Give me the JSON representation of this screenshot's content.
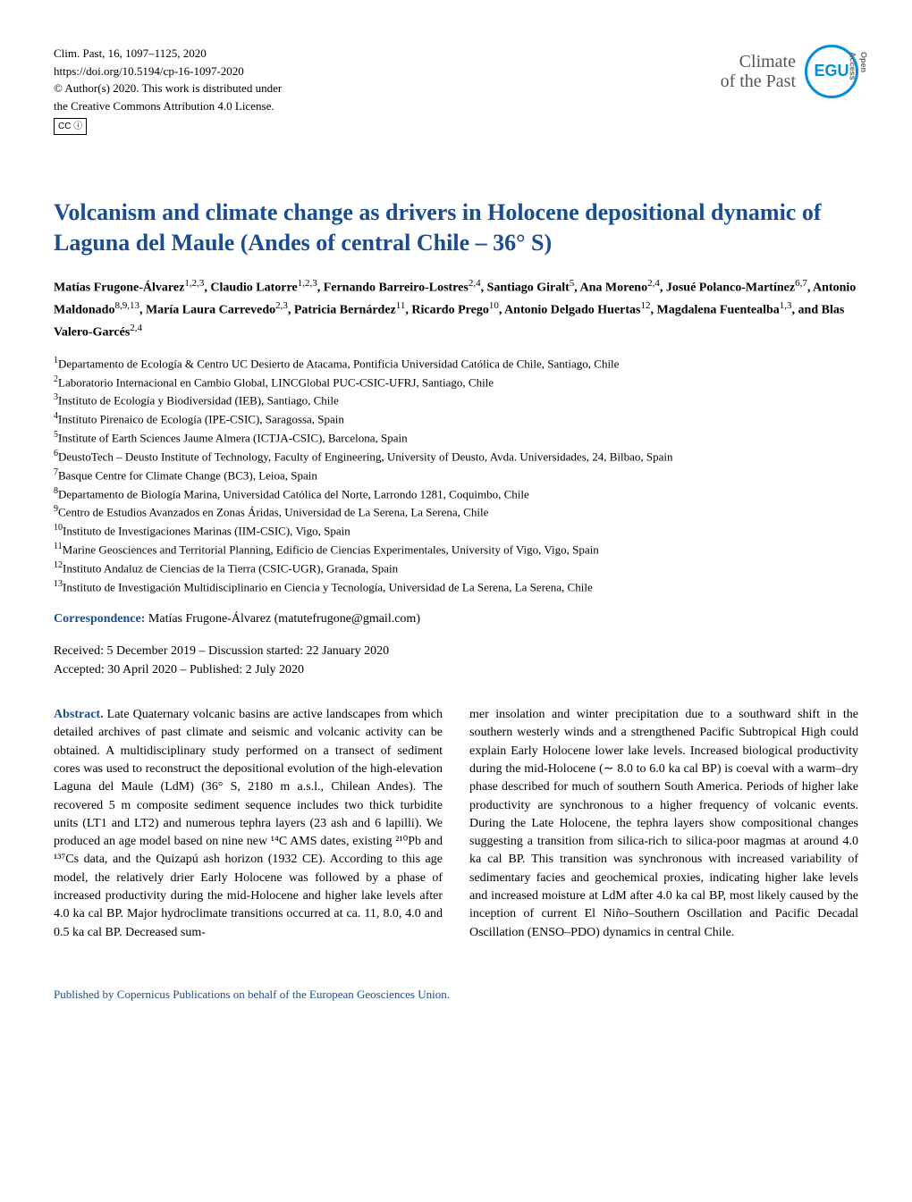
{
  "header": {
    "citation": "Clim. Past, 16, 1097–1125, 2020",
    "doi": "https://doi.org/10.5194/cp-16-1097-2020",
    "copyright": "© Author(s) 2020. This work is distributed under",
    "license": "the Creative Commons Attribution 4.0 License.",
    "cc_badge": "CC ⓘ",
    "journal_line1": "Climate",
    "journal_line2": "of the Past",
    "logo_text": "EGU",
    "open_access": "Open Access"
  },
  "title": "Volcanism and climate change as drivers in Holocene depositional dynamic of Laguna del Maule (Andes of central Chile – 36° S)",
  "authors_html": "Matías Frugone-Álvarez<sup>1,2,3</sup>, Claudio Latorre<sup>1,2,3</sup>, Fernando Barreiro-Lostres<sup>2,4</sup>, Santiago Giralt<sup>5</sup>, Ana Moreno<sup>2,4</sup>, Josué Polanco-Martínez<sup>6,7</sup>, Antonio Maldonado<sup>8,9,13</sup>, María Laura Carrevedo<sup>2,3</sup>, Patricia Bernárdez<sup>11</sup>, Ricardo Prego<sup>10</sup>, Antonio Delgado Huertas<sup>12</sup>, Magdalena Fuentealba<sup>1,3</sup>, and Blas Valero-Garcés<sup>2,4</sup>",
  "affiliations": [
    "<sup>1</sup>Departamento de Ecología & Centro UC Desierto de Atacama, Pontificia Universidad Católica de Chile, Santiago, Chile",
    "<sup>2</sup>Laboratorio Internacional en Cambio Global, LINCGlobal PUC-CSIC-UFRJ, Santiago, Chile",
    "<sup>3</sup>Instituto de Ecología y Biodiversidad (IEB), Santiago, Chile",
    "<sup>4</sup>Instituto Pirenaico de Ecología (IPE-CSIC), Saragossa, Spain",
    "<sup>5</sup>Institute of Earth Sciences Jaume Almera (ICTJA-CSIC), Barcelona, Spain",
    "<sup>6</sup>DeustoTech – Deusto Institute of Technology, Faculty of Engineering, University of Deusto, Avda. Universidades, 24, Bilbao, Spain",
    "<sup>7</sup>Basque Centre for Climate Change (BC3), Leioa, Spain",
    "<sup>8</sup>Departamento de Biología Marina, Universidad Católica del Norte, Larrondo 1281, Coquimbo, Chile",
    "<sup>9</sup>Centro de Estudios Avanzados en Zonas Áridas, Universidad de La Serena, La Serena, Chile",
    "<sup>10</sup>Instituto de Investigaciones Marinas (IIM-CSIC), Vigo, Spain",
    "<sup>11</sup>Marine Geosciences and Territorial Planning, Edificio de Ciencias Experimentales, University of Vigo, Vigo, Spain",
    "<sup>12</sup>Instituto Andaluz de Ciencias de la Tierra (CSIC-UGR), Granada, Spain",
    "<sup>13</sup>Instituto de Investigación Multidisciplinario en Ciencia y Tecnología, Universidad de La Serena, La Serena, Chile"
  ],
  "correspondence": {
    "label": "Correspondence:",
    "text": " Matías Frugone-Álvarez (matutefrugone@gmail.com)"
  },
  "dates": {
    "line1": "Received: 5 December 2019 – Discussion started: 22 January 2020",
    "line2": "Accepted: 30 April 2020 – Published: 2 July 2020"
  },
  "abstract": {
    "label": "Abstract.",
    "col1": " Late Quaternary volcanic basins are active landscapes from which detailed archives of past climate and seismic and volcanic activity can be obtained. A multidisciplinary study performed on a transect of sediment cores was used to reconstruct the depositional evolution of the high-elevation Laguna del Maule (LdM) (36° S, 2180 m a.s.l., Chilean Andes). The recovered 5 m composite sediment sequence includes two thick turbidite units (LT1 and LT2) and numerous tephra layers (23 ash and 6 lapilli). We produced an age model based on nine new ¹⁴C AMS dates, existing ²¹⁰Pb and ¹³⁷Cs data, and the Quizapú ash horizon (1932 CE). According to this age model, the relatively drier Early Holocene was followed by a phase of increased productivity during the mid-Holocene and higher lake levels after 4.0 ka cal BP. Major hydroclimate transitions occurred at ca. 11, 8.0, 4.0 and 0.5 ka cal BP. Decreased sum-",
    "col2": "mer insolation and winter precipitation due to a southward shift in the southern westerly winds and a strengthened Pacific Subtropical High could explain Early Holocene lower lake levels. Increased biological productivity during the mid-Holocene (∼ 8.0 to 6.0 ka cal BP) is coeval with a warm–dry phase described for much of southern South America. Periods of higher lake productivity are synchronous to a higher frequency of volcanic events. During the Late Holocene, the tephra layers show compositional changes suggesting a transition from silica-rich to silica-poor magmas at around 4.0 ka cal BP. This transition was synchronous with increased variability of sedimentary facies and geochemical proxies, indicating higher lake levels and increased moisture at LdM after 4.0 ka cal BP, most likely caused by the inception of current El Niño–Southern Oscillation and Pacific Decadal Oscillation (ENSO–PDO) dynamics in central Chile."
  },
  "footer": "Published by Copernicus Publications on behalf of the European Geosciences Union.",
  "colors": {
    "title_color": "#1a4d8f",
    "logo_color": "#008fd5",
    "text_color": "#000000",
    "background": "#ffffff"
  },
  "typography": {
    "body_font": "Times New Roman",
    "body_size_pt": 14,
    "title_size_pt": 26,
    "header_size_pt": 13
  }
}
